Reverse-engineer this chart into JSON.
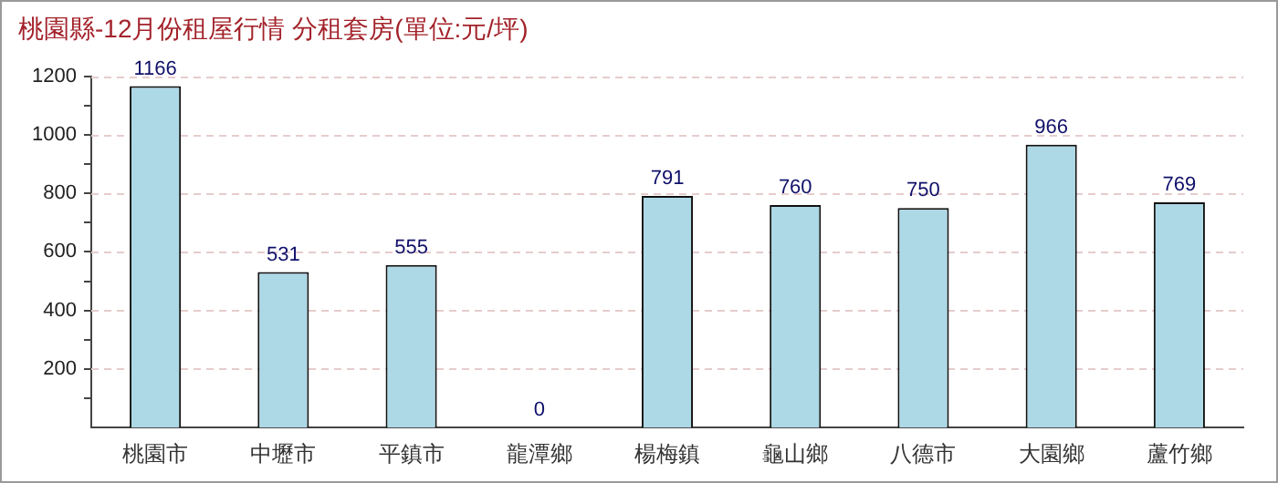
{
  "chart_data": {
    "type": "bar",
    "title": "桃園縣-12月份租屋行情 分租套房(單位:元/坪)",
    "categories": [
      "桃園市",
      "中壢市",
      "平鎮市",
      "龍潭鄉",
      "楊梅鎮",
      "龜山鄉",
      "八德市",
      "大園鄉",
      "蘆竹鄉"
    ],
    "values": [
      1166,
      531,
      555,
      0,
      791,
      760,
      750,
      966,
      769
    ],
    "color": "#add8e6",
    "ylim": [
      0,
      1200
    ],
    "yticks": [
      {
        "value": 100,
        "label": null
      },
      200,
      {
        "value": 300,
        "label": null
      },
      400,
      {
        "value": 500,
        "label": null
      },
      600,
      {
        "value": 700,
        "label": null
      },
      800,
      {
        "value": 900,
        "label": null
      },
      1000,
      {
        "value": 1100,
        "label": null
      },
      1200
    ],
    "grid": "y",
    "data_labels": true
  }
}
